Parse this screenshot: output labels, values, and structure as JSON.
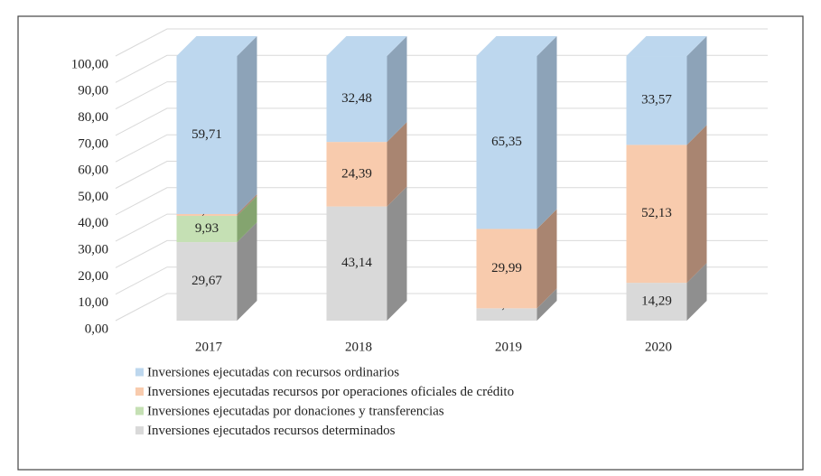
{
  "chart_data": {
    "type": "bar3d_stacked",
    "categories": [
      "2017",
      "2018",
      "2019",
      "2020"
    ],
    "series": [
      {
        "name": "Inversiones ejecutadas con recursos ordinarios",
        "color": "#bdd7ee",
        "side": "#8da3b8",
        "values": [
          59.71,
          32.48,
          65.35,
          33.57
        ],
        "value_labels": [
          "59,71",
          "32,48",
          "65,35",
          "33,57"
        ]
      },
      {
        "name": "Inversiones ejecutadas recursos por operaciones oficiales de crédito",
        "color": "#f8cbad",
        "side": "#a98571",
        "values": [
          0.69,
          24.39,
          29.99,
          52.13
        ],
        "value_labels": [
          "0,69",
          "24,39",
          "29,99",
          "52,13"
        ]
      },
      {
        "name": "Inversiones ejecutadas por donaciones y transferencias",
        "color": "#c5e0b4",
        "side": "#84a46f",
        "values": [
          9.93,
          null,
          null,
          null
        ],
        "value_labels": [
          "9,93",
          null,
          null,
          null
        ]
      },
      {
        "name": "Inversiones ejecutados recursos determinados",
        "color": "#d9d9d9",
        "side": "#8f8f8f",
        "values": [
          29.67,
          43.14,
          4.66,
          14.29
        ],
        "value_labels": [
          "29,67",
          "43,14",
          "4,66",
          "14,29"
        ]
      }
    ],
    "ylim": [
      0,
      100
    ],
    "yticks": [
      {
        "value": 0,
        "label": "0,00"
      },
      {
        "value": 10,
        "label": "10,00"
      },
      {
        "value": 20,
        "label": "20,00"
      },
      {
        "value": 30,
        "label": "30,00"
      },
      {
        "value": 40,
        "label": "40,00"
      },
      {
        "value": 50,
        "label": "50,00"
      },
      {
        "value": 60,
        "label": "60,00"
      },
      {
        "value": 70,
        "label": "70,00"
      },
      {
        "value": 80,
        "label": "80,00"
      },
      {
        "value": 90,
        "label": "90,00"
      },
      {
        "value": 100,
        "label": "100,00"
      }
    ],
    "grid": true,
    "legend": "bottom"
  }
}
